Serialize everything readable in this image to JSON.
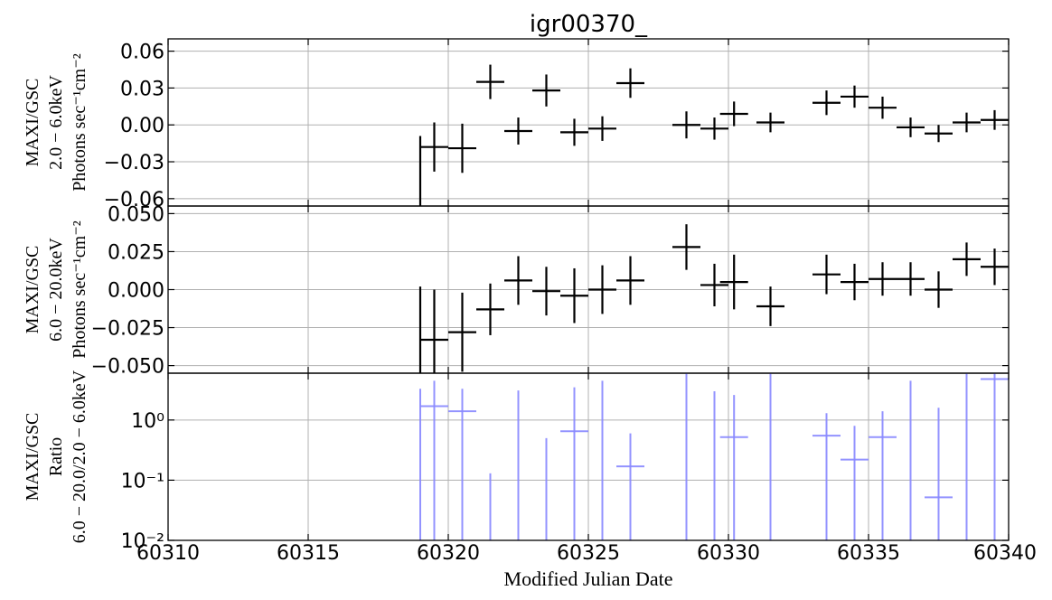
{
  "chart_data": {
    "title": "igr00370_",
    "xlabel": "Modified Julian Date",
    "xlim": [
      60310,
      60340
    ],
    "x_ticks": [
      "60310",
      "60315",
      "60320",
      "60325",
      "60330",
      "60335",
      "60340"
    ],
    "x_tick_values": [
      60310,
      60315,
      60320,
      60325,
      60330,
      60335,
      60340
    ],
    "grid": true,
    "panels": [
      {
        "type": "scatter",
        "style": "errorbar",
        "color": "#000000",
        "ylabel_lines": [
          "MAXI/GSC",
          "2.0 − 6.0keV",
          "Photons sec⁻¹cm⁻²"
        ],
        "ylim": [
          -0.066,
          0.07
        ],
        "yscale": "linear",
        "y_ticks": [
          "0.06",
          "0.03",
          "0.00",
          "−0.03",
          "−0.06"
        ],
        "y_tick_values": [
          0.06,
          0.03,
          0.0,
          -0.03,
          -0.06
        ],
        "points": [
          {
            "x": 60319.5,
            "y": -0.018,
            "yerr": 0.02
          },
          {
            "x": 60320.5,
            "y": -0.019,
            "yerr": 0.02
          },
          {
            "x": 60321.5,
            "y": 0.035,
            "yerr": 0.014
          },
          {
            "x": 60322.5,
            "y": -0.005,
            "yerr": 0.011
          },
          {
            "x": 60323.5,
            "y": 0.028,
            "yerr": 0.013
          },
          {
            "x": 60324.5,
            "y": -0.006,
            "yerr": 0.011
          },
          {
            "x": 60325.5,
            "y": -0.003,
            "yerr": 0.01
          },
          {
            "x": 60326.5,
            "y": 0.034,
            "yerr": 0.012
          },
          {
            "x": 60328.5,
            "y": 0.0,
            "yerr": 0.011
          },
          {
            "x": 60329.5,
            "y": -0.003,
            "yerr": 0.009
          },
          {
            "x": 60330.2,
            "y": 0.009,
            "yerr": 0.01
          },
          {
            "x": 60331.5,
            "y": 0.002,
            "yerr": 0.008
          },
          {
            "x": 60333.5,
            "y": 0.018,
            "yerr": 0.01
          },
          {
            "x": 60334.5,
            "y": 0.023,
            "yerr": 0.009
          },
          {
            "x": 60335.5,
            "y": 0.014,
            "yerr": 0.009
          },
          {
            "x": 60336.5,
            "y": -0.002,
            "yerr": 0.008
          },
          {
            "x": 60337.5,
            "y": -0.007,
            "yerr": 0.007
          },
          {
            "x": 60338.5,
            "y": 0.002,
            "yerr": 0.008
          },
          {
            "x": 60339.5,
            "y": 0.004,
            "yerr": 0.008
          }
        ],
        "extra_error_lines": [
          {
            "x": 60319.0,
            "ylo": -0.072,
            "yhi": -0.009
          }
        ]
      },
      {
        "type": "scatter",
        "style": "errorbar",
        "color": "#000000",
        "ylabel_lines": [
          "MAXI/GSC",
          "6.0 − 20.0keV",
          "Photons sec⁻¹cm⁻²"
        ],
        "ylim": [
          -0.055,
          0.055
        ],
        "yscale": "linear",
        "y_ticks": [
          "0.050",
          "0.025",
          "0.000",
          "−0.025",
          "−0.050"
        ],
        "y_tick_values": [
          0.05,
          0.025,
          0.0,
          -0.025,
          -0.05
        ],
        "points": [
          {
            "x": 60319.5,
            "y": -0.033,
            "yerr": 0.033
          },
          {
            "x": 60320.5,
            "y": -0.028,
            "yerr": 0.026
          },
          {
            "x": 60321.5,
            "y": -0.013,
            "yerr": 0.017
          },
          {
            "x": 60322.5,
            "y": 0.006,
            "yerr": 0.016
          },
          {
            "x": 60323.5,
            "y": -0.001,
            "yerr": 0.016
          },
          {
            "x": 60324.5,
            "y": -0.004,
            "yerr": 0.018
          },
          {
            "x": 60325.5,
            "y": 0.0,
            "yerr": 0.016
          },
          {
            "x": 60326.5,
            "y": 0.006,
            "yerr": 0.016
          },
          {
            "x": 60328.5,
            "y": 0.028,
            "yerr": 0.015
          },
          {
            "x": 60329.5,
            "y": 0.003,
            "yerr": 0.014
          },
          {
            "x": 60330.2,
            "y": 0.005,
            "yerr": 0.018
          },
          {
            "x": 60331.5,
            "y": -0.011,
            "yerr": 0.013
          },
          {
            "x": 60333.5,
            "y": 0.01,
            "yerr": 0.013
          },
          {
            "x": 60334.5,
            "y": 0.005,
            "yerr": 0.012
          },
          {
            "x": 60335.5,
            "y": 0.007,
            "yerr": 0.011
          },
          {
            "x": 60336.5,
            "y": 0.007,
            "yerr": 0.011
          },
          {
            "x": 60337.5,
            "y": 0.0,
            "yerr": 0.012
          },
          {
            "x": 60338.5,
            "y": 0.02,
            "yerr": 0.011
          },
          {
            "x": 60339.5,
            "y": 0.015,
            "yerr": 0.012
          }
        ],
        "extra_error_lines": [
          {
            "x": 60319.0,
            "ylo": -0.058,
            "yhi": 0.002
          }
        ]
      },
      {
        "type": "scatter",
        "style": "errorbar",
        "color": "#8888ff",
        "ylabel_lines": [
          "MAXI/GSC",
          "Ratio",
          "6.0 − 20.0/2.0 − 6.0keV"
        ],
        "ylim": [
          0.01,
          6.0
        ],
        "yscale": "log",
        "y_ticks": [
          "10⁰",
          "10⁻¹",
          "10⁻²"
        ],
        "y_tick_values": [
          1,
          0.1,
          0.01
        ],
        "points": [
          {
            "x": 60319.5,
            "y": 1.7,
            "ylo": 0.01,
            "yhi": 4.5
          },
          {
            "x": 60320.5,
            "y": 1.4,
            "ylo": 0.01,
            "yhi": 3.3
          },
          {
            "x": 60321.5,
            "y": null,
            "ylo": 0.01,
            "yhi": 0.13
          },
          {
            "x": 60322.5,
            "y": null,
            "ylo": 0.01,
            "yhi": 3.1
          },
          {
            "x": 60323.5,
            "y": null,
            "ylo": 0.01,
            "yhi": 0.5
          },
          {
            "x": 60324.5,
            "y": 0.65,
            "ylo": 0.01,
            "yhi": 3.5
          },
          {
            "x": 60325.5,
            "y": null,
            "ylo": 0.01,
            "yhi": 4.5
          },
          {
            "x": 60326.5,
            "y": 0.17,
            "ylo": 0.01,
            "yhi": 0.6
          },
          {
            "x": 60328.5,
            "y": null,
            "ylo": 0.01,
            "yhi": 6.0
          },
          {
            "x": 60329.5,
            "y": null,
            "ylo": 0.01,
            "yhi": 3.0
          },
          {
            "x": 60330.2,
            "y": 0.52,
            "ylo": 0.01,
            "yhi": 2.6
          },
          {
            "x": 60331.5,
            "y": null,
            "ylo": 0.01,
            "yhi": 6.0
          },
          {
            "x": 60333.5,
            "y": 0.55,
            "ylo": 0.01,
            "yhi": 1.3
          },
          {
            "x": 60334.5,
            "y": 0.22,
            "ylo": 0.01,
            "yhi": 0.8
          },
          {
            "x": 60335.5,
            "y": 0.52,
            "ylo": 0.01,
            "yhi": 1.4
          },
          {
            "x": 60336.5,
            "y": null,
            "ylo": 0.01,
            "yhi": 4.5
          },
          {
            "x": 60337.5,
            "y": 0.052,
            "ylo": 0.01,
            "yhi": 1.6
          },
          {
            "x": 60338.5,
            "y": null,
            "ylo": 0.01,
            "yhi": 6.0
          },
          {
            "x": 60339.5,
            "y": 4.8,
            "ylo": 0.01,
            "yhi": 6.0
          }
        ],
        "extra_error_lines": [
          {
            "x": 60319.0,
            "ylo": 0.01,
            "yhi": 3.3
          }
        ]
      }
    ]
  }
}
